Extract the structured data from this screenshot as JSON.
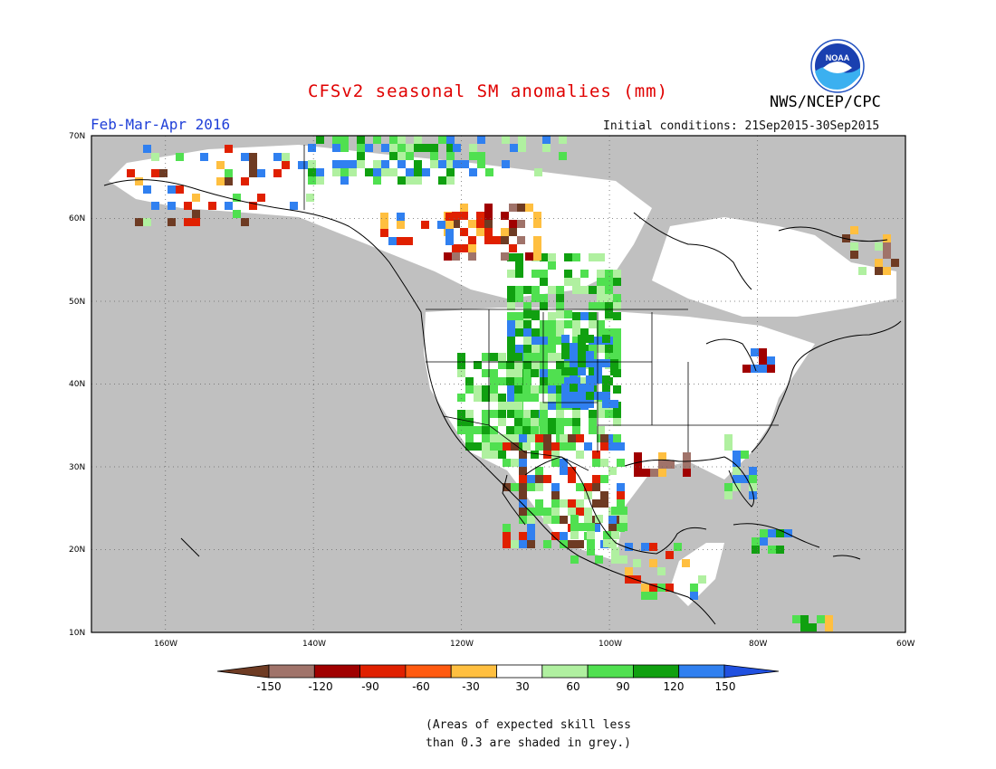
{
  "header": {
    "title": "CFSv2 seasonal SM anomalies (mm)",
    "season": "Feb-Mar-Apr 2016",
    "initial_conditions": "Initial conditions: 21Sep2015-30Sep2015",
    "agency": "NWS/NCEP/CPC",
    "logo_text": "NOAA"
  },
  "map": {
    "lat_labels": [
      "70N",
      "60N",
      "50N",
      "40N",
      "30N",
      "20N",
      "10N"
    ],
    "lon_labels": [
      "160W",
      "140W",
      "120W",
      "100W",
      "80W",
      "60W"
    ],
    "lat_values": [
      70,
      60,
      50,
      40,
      30,
      20,
      10
    ],
    "lon_values": [
      -160,
      -140,
      -120,
      -100,
      -80,
      -60
    ],
    "extent": {
      "lon_min": -170,
      "lon_max": -60,
      "lat_min": 10,
      "lat_max": 70
    },
    "no_skill_color": "#c0c0c0",
    "gridlines": "dotted"
  },
  "legend": {
    "tick_labels": [
      "-150",
      "-120",
      "-90",
      "-60",
      "-30",
      "30",
      "60",
      "90",
      "120",
      "150"
    ],
    "colors": [
      "#6e3b23",
      "#a0736a",
      "#a00000",
      "#e02000",
      "#ff5a10",
      "#ffbf40",
      "#ffffff",
      "#b0f0a0",
      "#50e050",
      "#10a010",
      "#3080f0",
      "#2050e0"
    ]
  },
  "footnote": {
    "line1": "(Areas of expected skill less",
    "line2": "than 0.3 are shaded in grey.)"
  }
}
